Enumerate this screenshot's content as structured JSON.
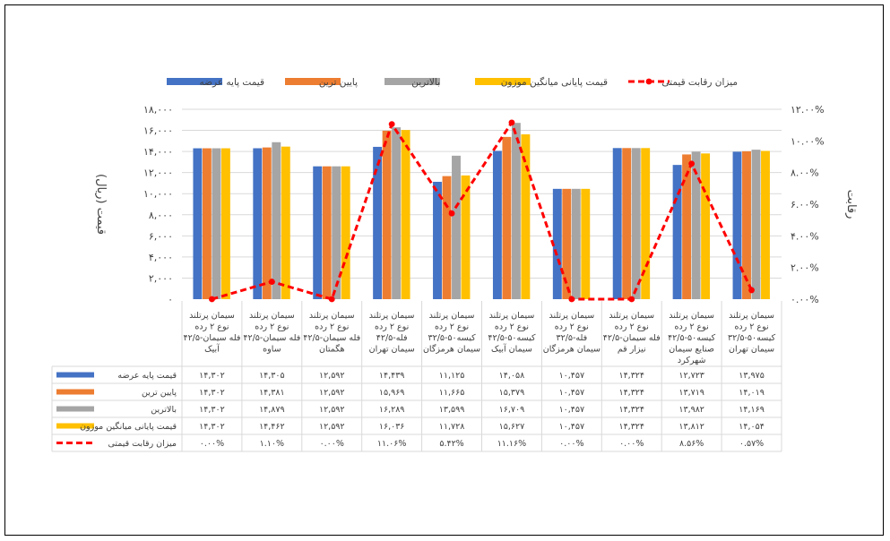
{
  "chart_data": {
    "type": "bar",
    "categories": [
      [
        "سیمان پرتلند",
        "نوع ۲ رده",
        "۴۲/۵-فله سیمان",
        "آبیک"
      ],
      [
        "سیمان پرتلند",
        "نوع ۲ رده",
        "۴۲/۵-فله سیمان",
        "ساوه"
      ],
      [
        "سیمان پرتلند",
        "نوع ۲ رده",
        "۴۲/۵-فله سیمان",
        "هگمتان"
      ],
      [
        "سیمان پرتلند",
        "نوع ۲ رده",
        "۴۲/۵-فله",
        "سیمان تهران"
      ],
      [
        "سیمان پرتلند",
        "نوع ۲ رده",
        "۳۲/۵-کیسه۵۰",
        "سیمان هرمزگان"
      ],
      [
        "سیمان پرتلند",
        "نوع ۲ رده",
        "۴۲/۵-کیسه۵۰",
        "سیمان آبیک"
      ],
      [
        "سیمان پرتلند",
        "نوع ۲ رده",
        "۳۲/۵-فله",
        "سیمان هرمزگان"
      ],
      [
        "سیمان پرتلند",
        "نوع ۲ رده",
        "۴۲/۵-فله سیمان",
        "نیزار قم"
      ],
      [
        "سیمان پرتلند",
        "نوع ۲ رده",
        "۴۲/۵-کیسه۵۰",
        "صنایع سیمان",
        "شهرکرد"
      ],
      [
        "سیمان پرتلند",
        "نوع ۲ رده",
        "۳۲/۵-کیسه۵۰",
        "سیمان تهران"
      ]
    ],
    "series": [
      {
        "name": "قیمت پایه عرضه",
        "color": "#4472C4",
        "values": [
          14302,
          14305,
          12592,
          14439,
          11125,
          14058,
          10457,
          14324,
          12723,
          13975
        ],
        "labels": [
          "۱۴,۳۰۲",
          "۱۴,۳۰۵",
          "۱۲,۵۹۲",
          "۱۴,۴۳۹",
          "۱۱,۱۲۵",
          "۱۴,۰۵۸",
          "۱۰,۴۵۷",
          "۱۴,۳۲۴",
          "۱۲,۷۲۳",
          "۱۳,۹۷۵"
        ]
      },
      {
        "name": "پایین ترین",
        "color": "#ED7D31",
        "values": [
          14302,
          14381,
          12592,
          15969,
          11665,
          15379,
          10457,
          14324,
          13719,
          14019
        ],
        "labels": [
          "۱۴,۳۰۲",
          "۱۴,۳۸۱",
          "۱۲,۵۹۲",
          "۱۵,۹۶۹",
          "۱۱,۶۶۵",
          "۱۵,۳۷۹",
          "۱۰,۴۵۷",
          "۱۴,۳۲۴",
          "۱۳,۷۱۹",
          "۱۴,۰۱۹"
        ]
      },
      {
        "name": "بالاترین",
        "color": "#A5A5A5",
        "values": [
          14302,
          14879,
          12592,
          16289,
          13599,
          16709,
          10457,
          14324,
          13982,
          14169
        ],
        "labels": [
          "۱۴,۳۰۲",
          "۱۴,۸۷۹",
          "۱۲,۵۹۲",
          "۱۶,۲۸۹",
          "۱۳,۵۹۹",
          "۱۶,۷۰۹",
          "۱۰,۴۵۷",
          "۱۴,۳۲۴",
          "۱۳,۹۸۲",
          "۱۴,۱۶۹"
        ]
      },
      {
        "name": "قیمت پایانی میانگین موزون",
        "color": "#FFC000",
        "values": [
          14302,
          14462,
          12592,
          16036,
          11728,
          15627,
          10457,
          14324,
          13812,
          14054
        ],
        "labels": [
          "۱۴,۳۰۲",
          "۱۴,۴۶۲",
          "۱۲,۵۹۲",
          "۱۶,۰۳۶",
          "۱۱,۷۲۸",
          "۱۵,۶۲۷",
          "۱۰,۴۵۷",
          "۱۴,۳۲۴",
          "۱۳,۸۱۲",
          "۱۴,۰۵۴"
        ]
      }
    ],
    "line_series": {
      "name": "میزان رقابت قیمتی",
      "color": "#FF0000",
      "axis": "right",
      "values": [
        0.0,
        1.1,
        0.0,
        11.06,
        5.42,
        11.16,
        0.0,
        0.0,
        8.56,
        0.57
      ],
      "labels": [
        "۰.۰۰%",
        "۱.۱۰%",
        "۰.۰۰%",
        "۱۱.۰۶%",
        "۵.۴۲%",
        "۱۱.۱۶%",
        "۰.۰۰%",
        "۰.۰۰%",
        "۸.۵۶%",
        "۰.۵۷%"
      ]
    },
    "ylabel": "قیمت (ریال)",
    "y2label": "رقابت",
    "ylim": [
      0,
      18000
    ],
    "y2lim": [
      0,
      12
    ],
    "yticks": [
      0,
      2000,
      4000,
      6000,
      8000,
      10000,
      12000,
      14000,
      16000,
      18000
    ],
    "yticklabels": [
      "۰",
      "۲,۰۰۰",
      "۴,۰۰۰",
      "۶,۰۰۰",
      "۸,۰۰۰",
      "۱۰,۰۰۰",
      "۱۲,۰۰۰",
      "۱۴,۰۰۰",
      "۱۶,۰۰۰",
      "۱۸,۰۰۰"
    ],
    "y2ticks": [
      0,
      2,
      4,
      6,
      8,
      10,
      12
    ],
    "y2ticklabels": [
      "۰.۰۰%",
      "۲.۰۰%",
      "۴.۰۰%",
      "۶.۰۰%",
      "۸.۰۰%",
      "۱۰.۰۰%",
      "۱۲.۰۰%"
    ],
    "grid": true,
    "legend_position": "top",
    "data_table": true
  }
}
